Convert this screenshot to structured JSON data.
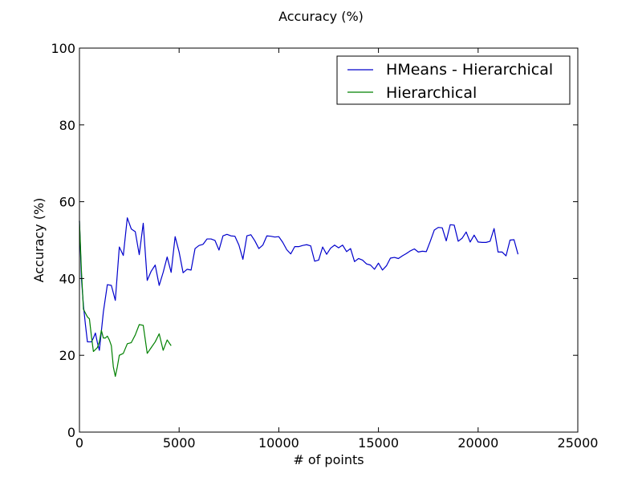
{
  "chart_data": {
    "type": "line",
    "title": "Accuracy (%)",
    "xlabel": "# of points",
    "ylabel": "Accuracy (%)",
    "xlim": [
      0,
      25000
    ],
    "ylim": [
      0,
      100
    ],
    "xticks": [
      0,
      5000,
      10000,
      15000,
      20000,
      25000
    ],
    "xtick_labels": [
      "0",
      "5000",
      "10000",
      "15000",
      "20000",
      "25000"
    ],
    "yticks": [
      0,
      20,
      40,
      60,
      80,
      100
    ],
    "ytick_labels": [
      "0",
      "20",
      "40",
      "60",
      "80",
      "100"
    ],
    "grid": false,
    "legend_position": "top-right",
    "series": [
      {
        "name": " HMeans - Hierarchical",
        "color": "#0000cc",
        "x": [
          0,
          100,
          200,
          300,
          400,
          500,
          600,
          700,
          800,
          900,
          1000,
          1200,
          1400,
          1600,
          1800,
          2000,
          2200,
          2400,
          2600,
          2800,
          3000,
          3200,
          3400,
          3600,
          3800,
          4000,
          4200,
          4400,
          4600,
          4800,
          5000,
          5200,
          5400,
          5600,
          5800,
          6000,
          6200,
          6400,
          6600,
          6800,
          7000,
          7200,
          7400,
          7600,
          7800,
          8000,
          8200,
          8400,
          8600,
          8800,
          9000,
          9200,
          9400,
          9600,
          9800,
          10000,
          10200,
          10400,
          10600,
          10800,
          11000,
          11200,
          11400,
          11600,
          11800,
          12000,
          12200,
          12400,
          12600,
          12800,
          13000,
          13200,
          13400,
          13600,
          13800,
          14000,
          14200,
          14400,
          14600,
          14800,
          15000,
          15200,
          15400,
          15600,
          15800,
          16000,
          16200,
          16400,
          16600,
          16800,
          17000,
          17200,
          17400,
          17600,
          17800,
          18000,
          18200,
          18400,
          18600,
          18800,
          19000,
          19200,
          19400,
          19600,
          19800,
          20000,
          20200,
          20400,
          20600,
          20800,
          21000,
          21200,
          21400,
          21600,
          21800,
          22000
        ],
        "y": [
          55,
          40,
          33,
          28,
          23.5,
          23.5,
          23.5,
          24.5,
          25.8,
          23.3,
          21.3,
          31.3,
          38.4,
          38.2,
          34.3,
          48.2,
          46,
          55.8,
          52.9,
          52.2,
          46.2,
          54.4,
          39.5,
          41.9,
          43.5,
          38.2,
          41.6,
          45.6,
          41.6,
          50.9,
          46.9,
          41.5,
          42.4,
          42.2,
          47.8,
          48.6,
          48.9,
          50.3,
          50.3,
          49.9,
          47.4,
          51.1,
          51.5,
          51.1,
          51,
          48.7,
          45,
          51.1,
          51.4,
          49.8,
          47.8,
          48.7,
          51.1,
          51,
          50.8,
          50.9,
          49.4,
          47.5,
          46.4,
          48.3,
          48.3,
          48.6,
          48.8,
          48.5,
          44.5,
          44.8,
          48.2,
          46.3,
          47.9,
          48.7,
          48,
          48.7,
          47,
          47.8,
          44.4,
          45.2,
          44.8,
          43.8,
          43.5,
          42.4,
          44,
          42.2,
          43.3,
          45.3,
          45.5,
          45.2,
          45.9,
          46.5,
          47.2,
          47.7,
          46.9,
          47.1,
          47,
          49.7,
          52.6,
          53.3,
          53.2,
          49.8,
          54,
          53.9,
          49.7,
          50.5,
          52.1,
          49.5,
          51.3,
          49.5,
          49.4,
          49.4,
          49.7,
          53,
          46.9,
          46.9,
          45.9,
          50,
          50.1,
          46.3
        ]
      },
      {
        "name": "Hierarchical",
        "color": "#008000",
        "x": [
          0,
          100,
          200,
          300,
          400,
          500,
          600,
          700,
          800,
          900,
          1000,
          1100,
          1200,
          1300,
          1400,
          1500,
          1600,
          1700,
          1800,
          1900,
          2000,
          2200,
          2400,
          2600,
          2800,
          3000,
          3200,
          3400,
          3600,
          3800,
          4000,
          4200,
          4400,
          4600
        ],
        "y": [
          55,
          42,
          32,
          31,
          30,
          29.5,
          25,
          21,
          21.5,
          22,
          23.5,
          26.5,
          24.5,
          24.5,
          25,
          24,
          22.5,
          17,
          14.5,
          17,
          20,
          20.5,
          23,
          23.3,
          25.3,
          28,
          27.8,
          20.5,
          22,
          23.5,
          25.6,
          21.3,
          24,
          22.5
        ]
      }
    ]
  }
}
